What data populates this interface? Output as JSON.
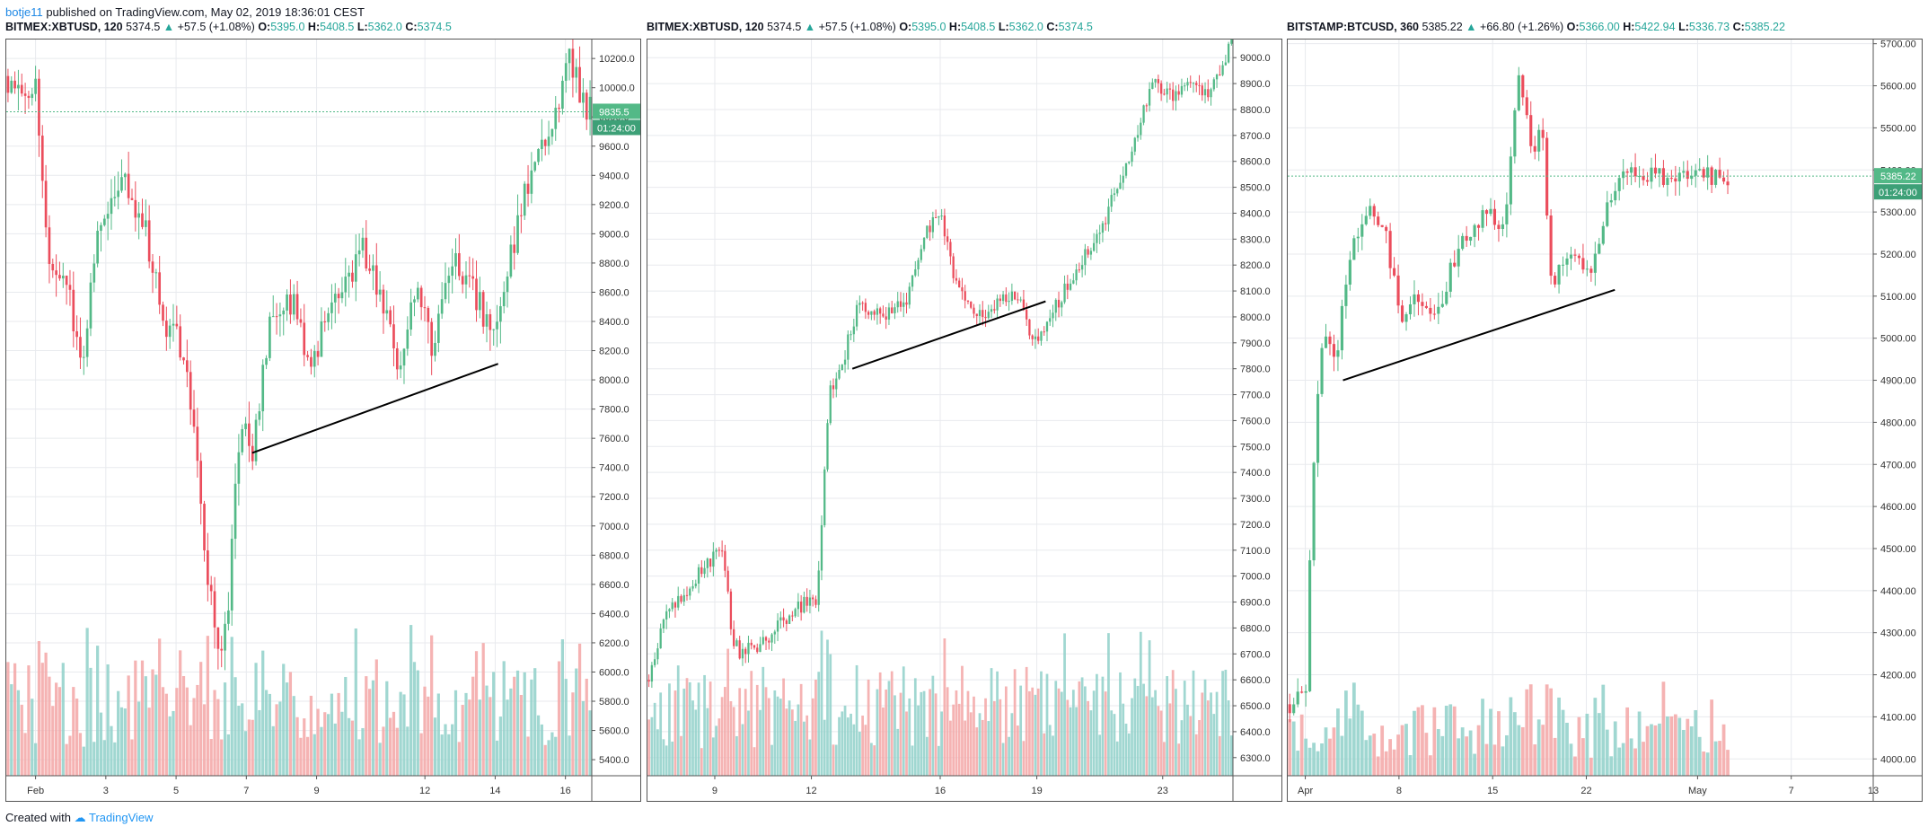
{
  "top": {
    "user": "botje11",
    "published": "published on TradingView.com, May 02, 2019 18:36:01 CEST"
  },
  "footer": {
    "created": "Created with",
    "brand": "TradingView"
  },
  "colors": {
    "up": "#53b987",
    "down": "#eb4d5c",
    "vol_up": "#8fd0c9",
    "vol_down": "#f3a6a6",
    "grid": "#e8eaee",
    "trend": "#000000"
  },
  "chart_data": [
    {
      "type": "candlestick",
      "header": {
        "symbol": "BITMEX:XBTUSD, 120",
        "last": "5374.5",
        "change": "+57.5 (+1.08%)",
        "O": "5395.0",
        "H": "5408.5",
        "L": "5362.0",
        "C": "5374.5"
      },
      "x_ticks": [
        {
          "label": "Feb",
          "t": 0.05
        },
        {
          "label": "3",
          "t": 0.17
        },
        {
          "label": "5",
          "t": 0.29
        },
        {
          "label": "7",
          "t": 0.41
        },
        {
          "label": "9",
          "t": 0.53
        },
        {
          "label": "12",
          "t": 0.715
        },
        {
          "label": "14",
          "t": 0.835
        },
        {
          "label": "16",
          "t": 0.955
        }
      ],
      "y_ticks": [
        "10200.0",
        "10000.0",
        "9800.0",
        "9600.0",
        "9400.0",
        "9200.0",
        "9000.0",
        "8800.0",
        "8600.0",
        "8400.0",
        "8200.0",
        "8000.0",
        "7800.0",
        "7600.0",
        "7400.0",
        "7200.0",
        "7000.0",
        "6800.0",
        "6600.0",
        "6400.0",
        "6200.0",
        "6000.0",
        "5800.0",
        "5600.0",
        "5400.0"
      ],
      "ylim": [
        5290,
        10330
      ],
      "anchors": [
        [
          0,
          10080
        ],
        [
          0.05,
          9980
        ],
        [
          0.07,
          8800
        ],
        [
          0.1,
          8700
        ],
        [
          0.13,
          8100
        ],
        [
          0.15,
          8900
        ],
        [
          0.18,
          9300
        ],
        [
          0.2,
          9400
        ],
        [
          0.24,
          9000
        ],
        [
          0.27,
          8400
        ],
        [
          0.3,
          8200
        ],
        [
          0.32,
          7800
        ],
        [
          0.34,
          6800
        ],
        [
          0.36,
          6100
        ],
        [
          0.38,
          6500
        ],
        [
          0.4,
          7800
        ],
        [
          0.42,
          7500
        ],
        [
          0.45,
          8400
        ],
        [
          0.49,
          8500
        ],
        [
          0.52,
          8000
        ],
        [
          0.55,
          8500
        ],
        [
          0.58,
          8700
        ],
        [
          0.61,
          8900
        ],
        [
          0.64,
          8500
        ],
        [
          0.67,
          8100
        ],
        [
          0.7,
          8600
        ],
        [
          0.73,
          8200
        ],
        [
          0.76,
          8800
        ],
        [
          0.8,
          8600
        ],
        [
          0.83,
          8300
        ],
        [
          0.86,
          8800
        ],
        [
          0.9,
          9500
        ],
        [
          0.93,
          9700
        ],
        [
          0.96,
          10250
        ],
        [
          0.985,
          9900
        ],
        [
          1,
          9850
        ]
      ],
      "trendline": [
        [
          0.42,
          7500
        ],
        [
          0.84,
          8110
        ]
      ],
      "last_price": {
        "label": "9835.5",
        "value": 9835.5,
        "timer": "01:24:00"
      },
      "volume_range": [
        0.72,
        0.93
      ],
      "candles": 170,
      "volatility": 0.011
    },
    {
      "type": "candlestick",
      "header": {
        "symbol": "BITMEX:XBTUSD, 120",
        "last": "5374.5",
        "change": "+57.5 (+1.08%)",
        "O": "5395.0",
        "H": "5408.5",
        "L": "5362.0",
        "C": "5374.5"
      },
      "x_ticks": [
        {
          "label": "9",
          "t": 0.115
        },
        {
          "label": "12",
          "t": 0.28
        },
        {
          "label": "16",
          "t": 0.5
        },
        {
          "label": "19",
          "t": 0.665
        },
        {
          "label": "23",
          "t": 0.88
        }
      ],
      "y_ticks": [
        "9000.0",
        "8900.0",
        "8800.0",
        "8700.0",
        "8600.0",
        "8500.0",
        "8400.0",
        "8300.0",
        "8200.0",
        "8100.0",
        "8000.0",
        "7900.0",
        "7800.0",
        "7700.0",
        "7600.0",
        "7500.0",
        "7400.0",
        "7300.0",
        "7200.0",
        "7100.0",
        "7000.0",
        "6900.0",
        "6800.0",
        "6700.0",
        "6600.0",
        "6500.0",
        "6400.0",
        "6300.0"
      ],
      "ylim": [
        6230,
        9070
      ],
      "anchors": [
        [
          0,
          6600
        ],
        [
          0.03,
          6850
        ],
        [
          0.07,
          6950
        ],
        [
          0.1,
          7050
        ],
        [
          0.13,
          7100
        ],
        [
          0.145,
          6750
        ],
        [
          0.16,
          6700
        ],
        [
          0.2,
          6750
        ],
        [
          0.24,
          6850
        ],
        [
          0.27,
          6900
        ],
        [
          0.29,
          6900
        ],
        [
          0.31,
          7700
        ],
        [
          0.33,
          7800
        ],
        [
          0.36,
          8050
        ],
        [
          0.4,
          8000
        ],
        [
          0.44,
          8050
        ],
        [
          0.47,
          8300
        ],
        [
          0.5,
          8400
        ],
        [
          0.53,
          8100
        ],
        [
          0.56,
          8000
        ],
        [
          0.6,
          8050
        ],
        [
          0.63,
          8100
        ],
        [
          0.66,
          7900
        ],
        [
          0.7,
          8050
        ],
        [
          0.75,
          8250
        ],
        [
          0.78,
          8350
        ],
        [
          0.8,
          8500
        ],
        [
          0.83,
          8650
        ],
        [
          0.86,
          8900
        ],
        [
          0.9,
          8850
        ],
        [
          0.93,
          8900
        ],
        [
          0.96,
          8850
        ],
        [
          1,
          9080
        ]
      ],
      "trendline": [
        [
          0.35,
          7800
        ],
        [
          0.68,
          8060
        ]
      ],
      "volume_range": [
        0.75,
        0.95
      ],
      "candles": 200,
      "volatility": 0.005
    },
    {
      "type": "candlestick",
      "header": {
        "symbol": "BITSTAMP:BTCUSD, 360",
        "last": "5385.22",
        "change": "+66.80 (+1.26%)",
        "O": "5366.00",
        "H": "5422.94",
        "L": "5336.73",
        "C": "5385.22"
      },
      "x_ticks": [
        {
          "label": "Apr",
          "t": 0.03
        },
        {
          "label": "8",
          "t": 0.19
        },
        {
          "label": "15",
          "t": 0.35
        },
        {
          "label": "22",
          "t": 0.51
        },
        {
          "label": "May",
          "t": 0.7
        },
        {
          "label": "7",
          "t": 0.86
        },
        {
          "label": "13",
          "t": 1.0
        }
      ],
      "y_ticks": [
        "5700.00",
        "5600.00",
        "5500.00",
        "5400.00",
        "5300.00",
        "5200.00",
        "5100.00",
        "5000.00",
        "4900.00",
        "4800.00",
        "4700.00",
        "4600.00",
        "4500.00",
        "4400.00",
        "4300.00",
        "4200.00",
        "4100.00",
        "4000.00"
      ],
      "ylim": [
        3960,
        5710
      ],
      "anchors": [
        [
          0,
          4130
        ],
        [
          0.04,
          4150
        ],
        [
          0.06,
          4750
        ],
        [
          0.08,
          5000
        ],
        [
          0.11,
          4950
        ],
        [
          0.14,
          5200
        ],
        [
          0.18,
          5300
        ],
        [
          0.22,
          5250
        ],
        [
          0.26,
          5050
        ],
        [
          0.3,
          5100
        ],
        [
          0.34,
          5050
        ],
        [
          0.38,
          5200
        ],
        [
          0.42,
          5250
        ],
        [
          0.45,
          5300
        ],
        [
          0.49,
          5250
        ],
        [
          0.52,
          5650
        ],
        [
          0.55,
          5450
        ],
        [
          0.58,
          5500
        ],
        [
          0.59,
          5150
        ],
        [
          0.62,
          5150
        ],
        [
          0.65,
          5200
        ],
        [
          0.68,
          5150
        ],
        [
          0.72,
          5300
        ],
        [
          0.75,
          5385
        ]
      ],
      "trendline": [
        [
          0.125,
          4900
        ],
        [
          0.74,
          5115
        ]
      ],
      "last_price": {
        "label": "5385.22",
        "value": 5385.22,
        "timer": "01:24:00"
      },
      "volume_range": [
        0.85,
        0.98
      ],
      "candles": 110,
      "volatility": 0.007,
      "data_extent": 0.755
    }
  ]
}
